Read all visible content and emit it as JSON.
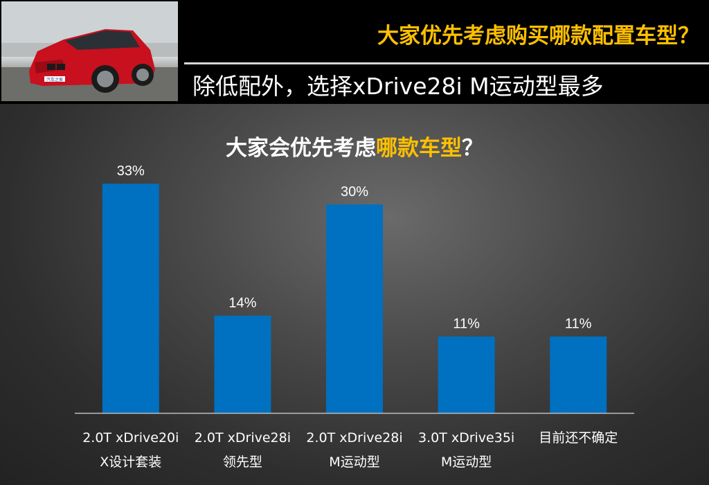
{
  "header": {
    "title": "大家优先考虑购买哪款配置车型？",
    "subtitle": "除低配外，选择xDrive28i M运动型最多",
    "photo_badge": "汽车之家"
  },
  "chart_data": {
    "type": "bar",
    "title_parts": [
      "大家会优先考虑",
      "哪款车型",
      "？"
    ],
    "categories": [
      [
        "2.0T xDrive20i",
        "X设计套装"
      ],
      [
        "2.0T xDrive28i",
        "领先型"
      ],
      [
        "2.0T xDrive28i",
        "M运动型"
      ],
      [
        "3.0T xDrive35i",
        "M运动型"
      ],
      [
        "目前还不确定"
      ]
    ],
    "values": [
      33,
      14,
      30,
      11,
      11
    ],
    "value_labels": [
      "33%",
      "14%",
      "30%",
      "11%",
      "11%"
    ],
    "unit": "%",
    "ylim": [
      0,
      35
    ],
    "bar_color": "#0070c0",
    "highlight_color": "#ffc000",
    "grid": false,
    "legend": "none"
  }
}
